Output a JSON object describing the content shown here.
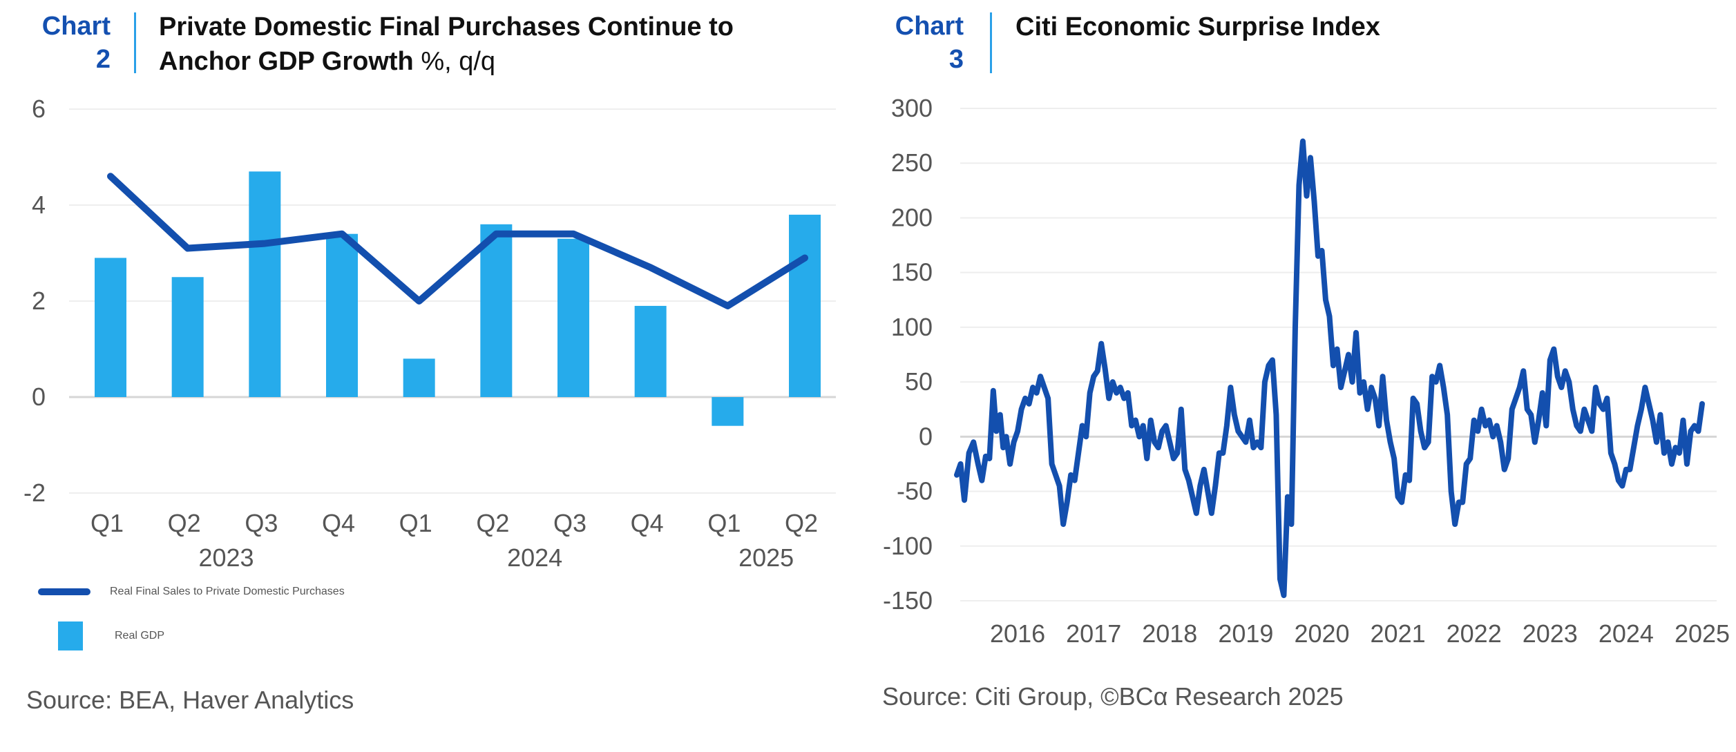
{
  "colors": {
    "line": "#134fae",
    "bar": "#26abeb",
    "tag": "#1450b0",
    "grid": "#eeeeee",
    "zero": "#d6d6d6"
  },
  "chart_data": [
    {
      "id": "chart2",
      "type": "bar",
      "tag_word": "Chart",
      "tag_number": "2",
      "title": "Private Domestic Final Purchases Continue to Anchor GDP Growth",
      "title_line1": "Private Domestic Final Purchases Continue to",
      "title_line2": "Anchor GDP Growth",
      "unit": "%, q/q",
      "xlabel": "",
      "ylabel": "",
      "ylim": [
        -2,
        6
      ],
      "yticks": [
        6,
        4,
        2,
        0,
        -2
      ],
      "grid": true,
      "categories": [
        "Q1",
        "Q2",
        "Q3",
        "Q4",
        "Q1",
        "Q2",
        "Q3",
        "Q4",
        "Q1",
        "Q2"
      ],
      "year_labels": [
        {
          "label": "2023",
          "span": [
            0,
            3
          ]
        },
        {
          "label": "2024",
          "span": [
            4,
            7
          ]
        },
        {
          "label": "2025",
          "span": [
            8,
            9
          ]
        }
      ],
      "series": [
        {
          "name": "Real Final Sales to Private Domestic Purchases",
          "kind": "line",
          "values": [
            4.6,
            3.1,
            3.2,
            3.4,
            2.0,
            3.4,
            3.4,
            2.7,
            1.9,
            2.9
          ]
        },
        {
          "name": "Real GDP",
          "kind": "bar",
          "values": [
            2.9,
            2.5,
            4.7,
            3.4,
            0.8,
            3.6,
            3.3,
            1.9,
            -0.6,
            3.8
          ]
        }
      ],
      "legend": [
        "Real Final Sales to Private Domestic Purchases",
        "Real GDP"
      ],
      "legend_position": "bottom-left",
      "source": "Source: BEA, Haver Analytics"
    },
    {
      "id": "chart3",
      "type": "line",
      "tag_word": "Chart",
      "tag_number": "3",
      "title": "Citi Economic Surprise Index",
      "xlabel": "",
      "ylabel": "",
      "ylim": [
        -150,
        300
      ],
      "yticks": [
        300,
        250,
        200,
        150,
        100,
        50,
        0,
        -50,
        -100,
        -150
      ],
      "xlim": [
        2015.7,
        2025.6
      ],
      "xticks": [
        "2016",
        "2017",
        "2018",
        "2019",
        "2020",
        "2021",
        "2022",
        "2023",
        "2024",
        "2025"
      ],
      "grid": true,
      "series": [
        {
          "name": "Citi Economic Surprise Index",
          "x": [
            2015.7,
            2015.75,
            2015.8,
            2015.86,
            2015.92,
            2015.98,
            2016.03,
            2016.08,
            2016.13,
            2016.18,
            2016.22,
            2016.27,
            2016.31,
            2016.35,
            2016.4,
            2016.45,
            2016.5,
            2016.55,
            2016.6,
            2016.65,
            2016.7,
            2016.75,
            2016.8,
            2016.85,
            2016.9,
            2016.95,
            2017.0,
            2017.05,
            2017.1,
            2017.15,
            2017.2,
            2017.25,
            2017.3,
            2017.35,
            2017.4,
            2017.45,
            2017.5,
            2017.55,
            2017.6,
            2017.65,
            2017.7,
            2017.75,
            2017.8,
            2017.85,
            2017.9,
            2017.95,
            2018.0,
            2018.05,
            2018.1,
            2018.15,
            2018.2,
            2018.25,
            2018.3,
            2018.35,
            2018.4,
            2018.45,
            2018.5,
            2018.55,
            2018.6,
            2018.65,
            2018.7,
            2018.75,
            2018.8,
            2018.85,
            2018.9,
            2018.95,
            2019.0,
            2019.05,
            2019.1,
            2019.15,
            2019.2,
            2019.25,
            2019.3,
            2019.35,
            2019.4,
            2019.45,
            2019.5,
            2019.55,
            2019.6,
            2019.65,
            2019.7,
            2019.75,
            2019.8,
            2019.85,
            2019.9,
            2019.95,
            2020.0,
            2020.05,
            2020.1,
            2020.15,
            2020.2,
            2020.25,
            2020.3,
            2020.35,
            2020.4,
            2020.45,
            2020.5,
            2020.55,
            2020.6,
            2020.65,
            2020.7,
            2020.75,
            2020.8,
            2020.85,
            2020.9,
            2020.95,
            2021.0,
            2021.05,
            2021.1,
            2021.15,
            2021.2,
            2021.25,
            2021.3,
            2021.35,
            2021.4,
            2021.45,
            2021.5,
            2021.55,
            2021.6,
            2021.65,
            2021.7,
            2021.75,
            2021.8,
            2021.85,
            2021.9,
            2021.95,
            2022.0,
            2022.05,
            2022.1,
            2022.15,
            2022.2,
            2022.25,
            2022.3,
            2022.35,
            2022.4,
            2022.45,
            2022.5,
            2022.55,
            2022.6,
            2022.65,
            2022.7,
            2022.75,
            2022.8,
            2022.85,
            2022.9,
            2022.95,
            2023.0,
            2023.05,
            2023.1,
            2023.15,
            2023.2,
            2023.25,
            2023.3,
            2023.35,
            2023.4,
            2023.45,
            2023.5,
            2023.55,
            2023.6,
            2023.65,
            2023.7,
            2023.75,
            2023.8,
            2023.85,
            2023.9,
            2023.95,
            2024.0,
            2024.05,
            2024.1,
            2024.15,
            2024.2,
            2024.25,
            2024.3,
            2024.35,
            2024.4,
            2024.45,
            2024.5,
            2024.55,
            2024.6,
            2024.65,
            2024.7,
            2024.75,
            2024.8,
            2024.85,
            2024.9,
            2024.95,
            2025.0,
            2025.05,
            2025.1,
            2025.15,
            2025.2,
            2025.25,
            2025.3,
            2025.35,
            2025.4,
            2025.45,
            2025.5
          ],
          "values": [
            -35,
            -25,
            -58,
            -15,
            -5,
            -25,
            -40,
            -18,
            -20,
            42,
            5,
            20,
            -10,
            0,
            -25,
            -5,
            5,
            25,
            35,
            30,
            45,
            40,
            55,
            45,
            35,
            -25,
            -35,
            -45,
            -80,
            -60,
            -35,
            -40,
            -15,
            10,
            0,
            40,
            55,
            60,
            85,
            62,
            35,
            50,
            40,
            45,
            35,
            40,
            10,
            15,
            0,
            10,
            -20,
            15,
            -5,
            -10,
            5,
            10,
            -5,
            -20,
            -15,
            25,
            -30,
            -40,
            -55,
            -70,
            -45,
            -30,
            -50,
            -70,
            -45,
            -15,
            -15,
            10,
            45,
            20,
            5,
            0,
            -5,
            15,
            -10,
            -5,
            -10,
            50,
            65,
            70,
            20,
            -130,
            -145,
            -55,
            -80,
            100,
            230,
            270,
            220,
            255,
            215,
            165,
            170,
            125,
            110,
            65,
            80,
            45,
            60,
            75,
            50,
            95,
            40,
            50,
            25,
            45,
            35,
            10,
            55,
            15,
            -5,
            -20,
            -55,
            -60,
            -35,
            -40,
            35,
            30,
            5,
            -10,
            -5,
            55,
            50,
            65,
            45,
            20,
            -50,
            -80,
            -60,
            -60,
            -25,
            -20,
            15,
            5,
            25,
            10,
            15,
            0,
            10,
            -5,
            -30,
            -20,
            25,
            35,
            45,
            60,
            25,
            20,
            -5,
            15,
            40,
            10,
            70,
            80,
            55,
            45,
            60,
            50,
            25,
            10,
            5,
            25,
            15,
            5,
            45,
            30,
            25,
            35,
            -15,
            -25,
            -40,
            -45,
            -30,
            -30,
            -10,
            10,
            25,
            45,
            30,
            15,
            -5,
            20,
            -15,
            -5,
            -25,
            -10,
            -15,
            15,
            -25,
            5,
            10,
            5,
            30
          ]
        }
      ],
      "source": "Source: Citi Group, ©BCα Research 2025"
    }
  ]
}
